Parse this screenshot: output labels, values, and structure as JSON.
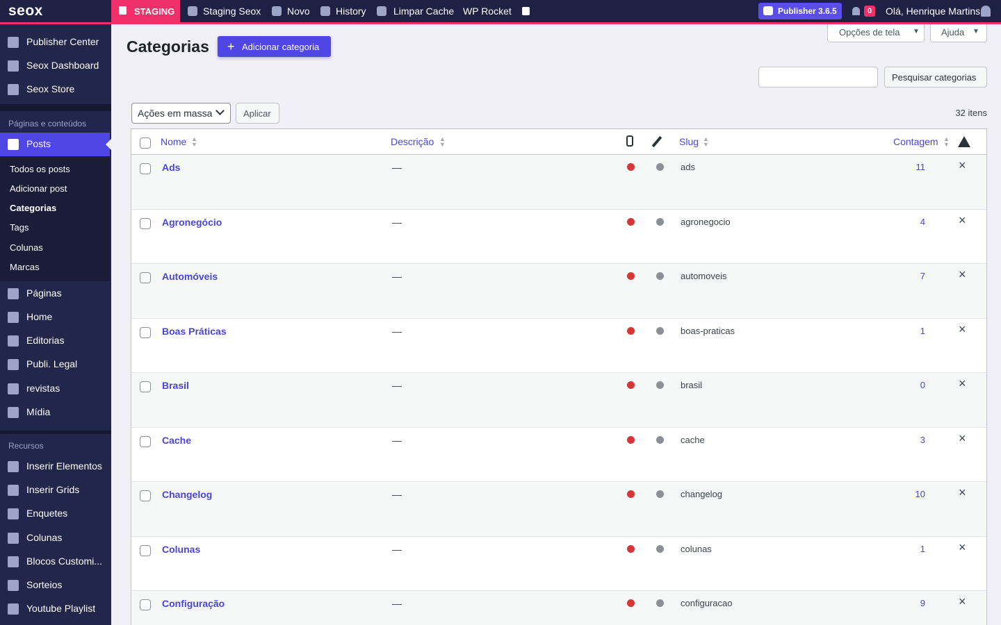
{
  "topbar": {
    "logo": "seox",
    "staging": "STAGING",
    "items": [
      "Staging Seox",
      "Novo",
      "History",
      "Limpar Cache",
      "WP Rocket"
    ],
    "publisher": "Publisher 3.6.5",
    "notifications": "0",
    "greeting": "Olá, Henrique Martins"
  },
  "sidebar": {
    "top": [
      "Publisher Center",
      "Seox Dashboard",
      "Seox Store"
    ],
    "section1": "Páginas e conteúdos",
    "active": "Posts",
    "submenu": [
      "Todos os posts",
      "Adicionar post",
      "Categorias",
      "Tags",
      "Colunas",
      "Marcas"
    ],
    "menu": [
      "Páginas",
      "Home",
      "Editorias",
      "Publi. Legal",
      "revistas",
      "Mídia"
    ],
    "section2": "Recursos",
    "resources": [
      "Inserir Elementos",
      "Inserir Grids",
      "Enquetes",
      "Colunas",
      "Blocos Customi...",
      "Sorteios",
      "Youtube Playlist"
    ]
  },
  "header": {
    "title": "Categorias",
    "add_button": "Adicionar categoria",
    "screen_options": "Opções de tela",
    "help": "Ajuda",
    "search_button": "Pesquisar categorias",
    "bulk_actions": "Ações em massa",
    "apply": "Aplicar",
    "count": "32 itens"
  },
  "table": {
    "columns": [
      "Nome",
      "Descrição",
      "Slug",
      "Contagem"
    ],
    "rows": [
      [
        "Ads",
        "—",
        "ads",
        11
      ],
      [
        "Agronegócio",
        "—",
        "agronegocio",
        4
      ],
      [
        "Automóveis",
        "—",
        "automoveis",
        7
      ],
      [
        "Boas Práticas",
        "—",
        "boas-praticas",
        1
      ],
      [
        "Brasil",
        "—",
        "brasil",
        0
      ],
      [
        "Cache",
        "—",
        "cache",
        3
      ],
      [
        "Changelog",
        "—",
        "changelog",
        10
      ],
      [
        "Colunas",
        "—",
        "colunas",
        1
      ],
      [
        "Configuração",
        "—",
        "configuracao",
        9
      ]
    ]
  }
}
